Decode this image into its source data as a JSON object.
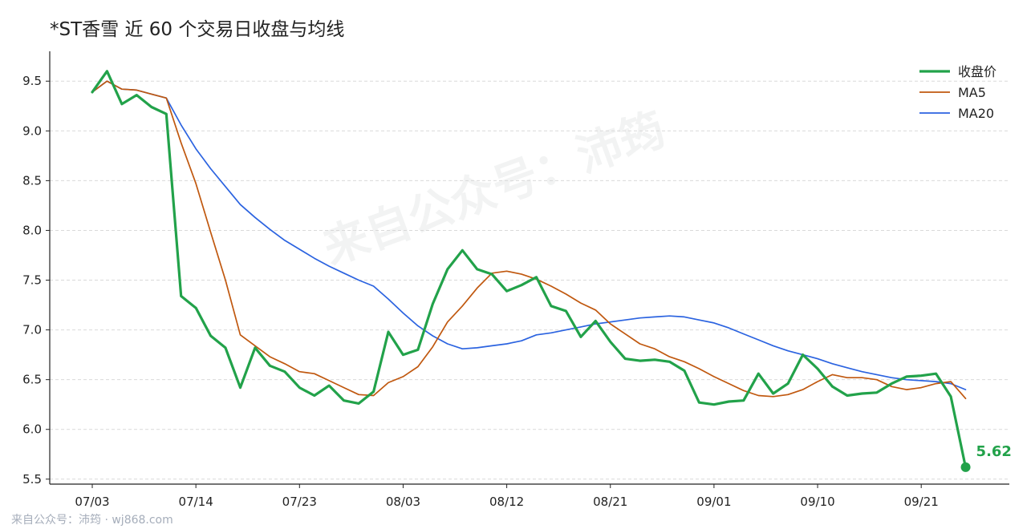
{
  "title": "*ST香雪 近 60 个交易日收盘与均线",
  "watermark": "来自公众号：沛筠",
  "credit": "来自公众号：沛筠 · wj868.com",
  "colors": {
    "close": "#22a24a",
    "ma5": "#c0580f",
    "ma20": "#2b63e0",
    "grid": "#d9d9d9",
    "axis": "#222222"
  },
  "chart_data": {
    "type": "line",
    "title": "*ST香雪 近 60 个交易日收盘与均线",
    "x_tick_labels": [
      "07/03",
      "07/14",
      "07/23",
      "08/03",
      "08/12",
      "08/21",
      "09/01",
      "09/10",
      "09/21"
    ],
    "x_tick_index": [
      0,
      7,
      14,
      21,
      28,
      35,
      42,
      49,
      56
    ],
    "ylim": [
      5.45,
      9.8
    ],
    "yticks": [
      5.5,
      6.0,
      6.5,
      7.0,
      7.5,
      8.0,
      8.5,
      9.0,
      9.5
    ],
    "grid": "horizontal dashed",
    "legend_position": "top-right",
    "end_label": "5.62",
    "series": [
      {
        "name": "收盘价",
        "values": [
          9.39,
          9.6,
          9.27,
          9.36,
          9.24,
          9.17,
          7.34,
          7.22,
          6.94,
          6.82,
          6.42,
          6.82,
          6.64,
          6.58,
          6.42,
          6.34,
          6.44,
          6.29,
          6.26,
          6.38,
          6.98,
          6.75,
          6.8,
          7.26,
          7.61,
          7.8,
          7.61,
          7.56,
          7.39,
          7.45,
          7.53,
          7.24,
          7.19,
          6.93,
          7.09,
          6.88,
          6.71,
          6.69,
          6.7,
          6.68,
          6.59,
          6.27,
          6.25,
          6.28,
          6.29,
          6.56,
          6.36,
          6.46,
          6.75,
          6.61,
          6.43,
          6.34,
          6.36,
          6.37,
          6.46,
          6.53,
          6.54,
          6.56,
          6.33,
          5.62
        ]
      },
      {
        "name": "MA5",
        "values": [
          9.39,
          9.5,
          9.42,
          9.41,
          9.37,
          9.33,
          8.88,
          8.47,
          7.98,
          7.5,
          6.95,
          6.84,
          6.73,
          6.66,
          6.58,
          6.56,
          6.49,
          6.42,
          6.35,
          6.34,
          6.47,
          6.53,
          6.63,
          6.83,
          7.08,
          7.24,
          7.42,
          7.57,
          7.59,
          7.56,
          7.51,
          7.44,
          7.36,
          7.27,
          7.2,
          7.06,
          6.96,
          6.86,
          6.81,
          6.73,
          6.68,
          6.61,
          6.53,
          6.46,
          6.39,
          6.34,
          6.33,
          6.35,
          6.4,
          6.48,
          6.55,
          6.52,
          6.52,
          6.5,
          6.43,
          6.4,
          6.42,
          6.46,
          6.48,
          6.31
        ]
      },
      {
        "name": "MA20",
        "values": [
          9.39,
          9.5,
          9.42,
          9.41,
          9.37,
          9.33,
          9.06,
          8.82,
          8.62,
          8.44,
          8.26,
          8.13,
          8.01,
          7.9,
          7.81,
          7.72,
          7.64,
          7.57,
          7.5,
          7.44,
          7.31,
          7.17,
          7.04,
          6.94,
          6.86,
          6.81,
          6.82,
          6.84,
          6.86,
          6.89,
          6.95,
          6.97,
          7.0,
          7.03,
          7.06,
          7.08,
          7.1,
          7.12,
          7.13,
          7.14,
          7.13,
          7.1,
          7.07,
          7.02,
          6.96,
          6.9,
          6.84,
          6.79,
          6.75,
          6.71,
          6.66,
          6.62,
          6.58,
          6.55,
          6.52,
          6.5,
          6.49,
          6.48,
          6.46,
          6.4
        ]
      }
    ]
  }
}
